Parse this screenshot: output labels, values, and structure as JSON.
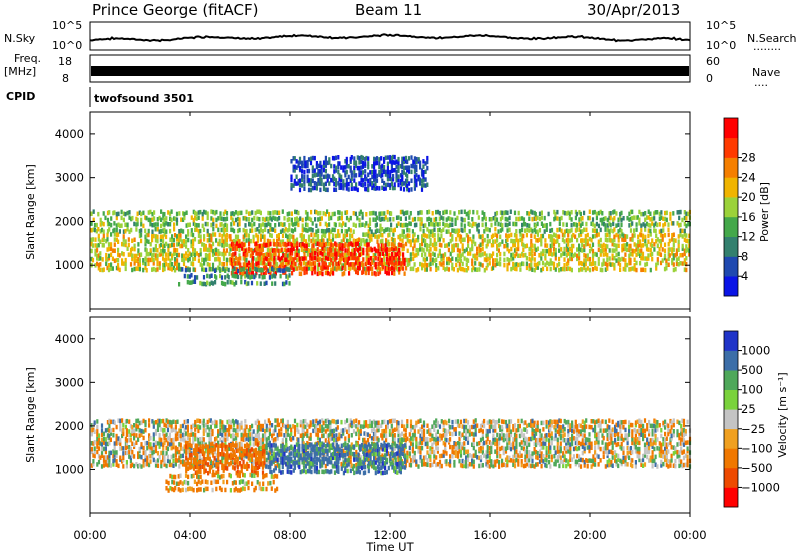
{
  "header": {
    "station": "Prince George (fitACF)",
    "beam": "Beam 11",
    "date": "30/Apr/2013"
  },
  "noise_panel": {
    "left_label": "N.Sky",
    "right_label": "N.Search",
    "left_ticks": [
      "10^5",
      "10^0"
    ],
    "right_ticks": [
      "10^5",
      "10^0"
    ],
    "right_legend_dots": "........"
  },
  "freq_panel": {
    "left_label_1": "Freq.",
    "left_label_2": "[MHz]",
    "left_ticks": [
      "18",
      "8"
    ],
    "right_ticks": [
      "60",
      "0"
    ],
    "right_label": "Nave",
    "right_legend_dots": "...."
  },
  "cpid_panel": {
    "left_label": "CPID",
    "program": "twofsound  3501"
  },
  "x_axis": {
    "label": "Time UT",
    "ticks": [
      "00:00",
      "04:00",
      "08:00",
      "12:00",
      "16:00",
      "20:00",
      "00:00"
    ]
  },
  "colors": {
    "power": [
      "#0a14e6",
      "#1f49b0",
      "#33806e",
      "#44a84a",
      "#9bd23a",
      "#f0b400",
      "#f57f00",
      "#ff3a00",
      "#ff0000"
    ],
    "velocity": [
      "#2034c8",
      "#3c6ea8",
      "#4fa85a",
      "#7ad23c",
      "#c4c4c4",
      "#f0a020",
      "#f07800",
      "#ee4a00",
      "#ff0000"
    ]
  },
  "chart_data": [
    {
      "type": "heatmap",
      "title": "Power",
      "xlabel": "Time UT",
      "ylabel": "Slant Range [km]",
      "xlim": [
        "00:00",
        "24:00"
      ],
      "ylim": [
        0,
        4500
      ],
      "y_ticks": [
        "1000",
        "2000",
        "3000",
        "4000"
      ],
      "colorbar": {
        "label": "Power [dB]",
        "ticks": [
          "4",
          "8",
          "12",
          "16",
          "20",
          "24",
          "28"
        ],
        "range": [
          0,
          32
        ]
      },
      "bands": [
        {
          "name": "near-range echoes",
          "t_start": 0.0,
          "t_end": 24.0,
          "r_center": 1300,
          "r_width": 380,
          "level": 18
        },
        {
          "name": "upper band",
          "t_start": 0.0,
          "t_end": 24.0,
          "r_center": 2000,
          "r_width": 200,
          "level": 14
        },
        {
          "name": "strong echoes",
          "t_start": 5.6,
          "t_end": 12.6,
          "r_center": 1150,
          "r_width": 320,
          "level": 27
        },
        {
          "name": "low-range arc",
          "t_start": 3.5,
          "t_end": 8.0,
          "r_center": 750,
          "r_width": 150,
          "level": 10
        },
        {
          "name": "far-range scatter",
          "t_start": 8.0,
          "t_end": 13.5,
          "r_center": 3100,
          "r_width": 350,
          "level": 5
        }
      ]
    },
    {
      "type": "heatmap",
      "title": "Velocity",
      "xlabel": "Time UT",
      "ylabel": "Slant Range [km]",
      "xlim": [
        "00:00",
        "24:00"
      ],
      "ylim": [
        0,
        4500
      ],
      "y_ticks": [
        "1000",
        "2000",
        "3000",
        "4000"
      ],
      "colorbar": {
        "label": "Velocity [m s⁻¹]",
        "ticks": [
          "1000",
          "500",
          "100",
          "25",
          "−25",
          "−100",
          "−500",
          "−1000"
        ],
        "range": [
          -1000,
          1000
        ]
      },
      "bands": [
        {
          "name": "ground scatter",
          "t_start": 0.0,
          "t_end": 24.0,
          "r_center": 1600,
          "r_width": 500,
          "velocity": 0
        },
        {
          "name": "receding flow",
          "t_start": 3.8,
          "t_end": 7.0,
          "r_center": 1250,
          "r_width": 300,
          "velocity": -400
        },
        {
          "name": "mixed flow",
          "t_start": 7.0,
          "t_end": 12.6,
          "r_center": 1250,
          "r_width": 300,
          "velocity": 300
        },
        {
          "name": "low-range arc",
          "t_start": 3.0,
          "t_end": 7.5,
          "r_center": 700,
          "r_width": 150,
          "velocity": -100
        }
      ]
    }
  ]
}
